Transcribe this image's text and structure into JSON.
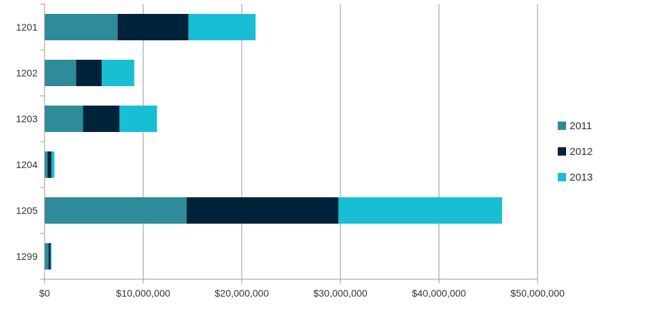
{
  "chart_data": {
    "type": "bar",
    "orientation": "horizontal",
    "stacked": true,
    "categories": [
      "1201",
      "1202",
      "1203",
      "1204",
      "1205",
      "1299"
    ],
    "series": [
      {
        "name": "2011",
        "color": "#2e8b9a",
        "values": [
          7400000,
          3200000,
          3900000,
          300000,
          14400000,
          400000
        ]
      },
      {
        "name": "2012",
        "color": "#01233a",
        "values": [
          7200000,
          2600000,
          3700000,
          400000,
          15400000,
          200000
        ]
      },
      {
        "name": "2013",
        "color": "#18bfd2",
        "values": [
          6800000,
          3300000,
          3800000,
          300000,
          16600000,
          100000
        ]
      }
    ],
    "x_ticks": [
      "$0",
      "$10,000,000",
      "$20,000,000",
      "$30,000,000",
      "$40,000,000",
      "$50,000,000"
    ],
    "xlim": [
      0,
      50000000
    ],
    "title": "",
    "xlabel": "",
    "ylabel": "",
    "grid": "vertical",
    "legend": {
      "placement": "right"
    }
  }
}
